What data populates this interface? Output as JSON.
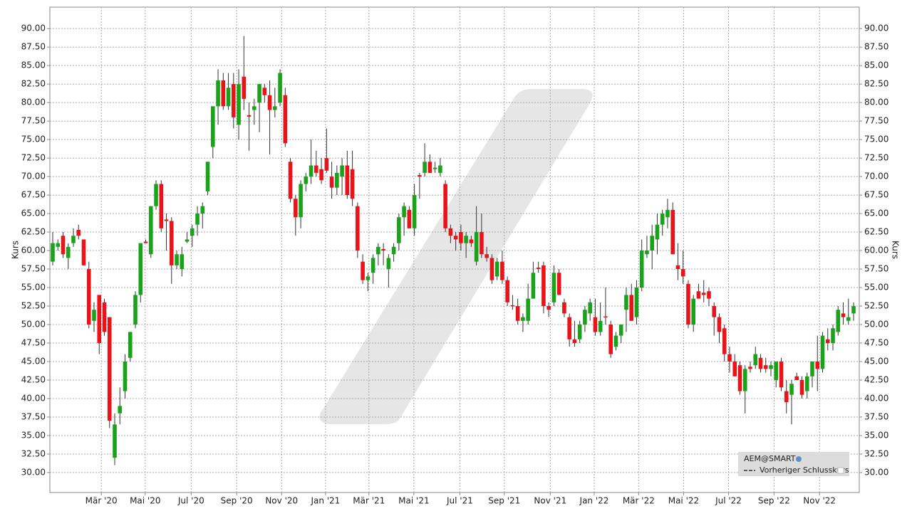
{
  "chart_data": {
    "type": "candlestick",
    "y_label": "Kurs",
    "y2_label": "Kurs",
    "legend": {
      "name": "AEM@SMART",
      "line_label": "Vorheriger Schlusskurs",
      "corner": "lower right"
    },
    "up_color": "#1aa31a",
    "down_color": "#e8141a",
    "grid": true,
    "xlim": [
      -0.55,
      156.1
    ],
    "ylim": [
      27.3,
      92.9
    ],
    "xticks": [
      {
        "value": 9.4,
        "label": "Mär '20"
      },
      {
        "value": 17.9,
        "label": "Mai '20"
      },
      {
        "value": 26.8,
        "label": "Jul '20"
      },
      {
        "value": 35.6,
        "label": "Sep '20"
      },
      {
        "value": 44.3,
        "label": "Nov '20"
      },
      {
        "value": 52.8,
        "label": "Jan '21"
      },
      {
        "value": 61.2,
        "label": "Mär '21"
      },
      {
        "value": 69.9,
        "label": "Mai '21"
      },
      {
        "value": 78.8,
        "label": "Jul '21"
      },
      {
        "value": 87.4,
        "label": "Sep '21"
      },
      {
        "value": 96.3,
        "label": "Nov '21"
      },
      {
        "value": 104.8,
        "label": "Jan '22"
      },
      {
        "value": 113.4,
        "label": "Mär '22"
      },
      {
        "value": 122.1,
        "label": "Mai '22"
      },
      {
        "value": 130.8,
        "label": "Jul '22"
      },
      {
        "value": 139.6,
        "label": "Sep '22"
      },
      {
        "value": 148.4,
        "label": "Nov '22"
      }
    ],
    "yticks": [
      {
        "value": 30,
        "label": "30.00"
      },
      {
        "value": 32.5,
        "label": "32.50"
      },
      {
        "value": 35,
        "label": "35.00"
      },
      {
        "value": 37.5,
        "label": "37.50"
      },
      {
        "value": 40,
        "label": "40.00"
      },
      {
        "value": 42.5,
        "label": "42.50"
      },
      {
        "value": 45,
        "label": "45.00"
      },
      {
        "value": 47.5,
        "label": "47.50"
      },
      {
        "value": 50,
        "label": "50.00"
      },
      {
        "value": 52.5,
        "label": "52.50"
      },
      {
        "value": 55,
        "label": "55.00"
      },
      {
        "value": 57.5,
        "label": "57.50"
      },
      {
        "value": 60,
        "label": "60.00"
      },
      {
        "value": 62.5,
        "label": "62.50"
      },
      {
        "value": 65,
        "label": "65.00"
      },
      {
        "value": 67.5,
        "label": "67.50"
      },
      {
        "value": 70,
        "label": "70.00"
      },
      {
        "value": 72.5,
        "label": "72.50"
      },
      {
        "value": 75,
        "label": "75.00"
      },
      {
        "value": 77.5,
        "label": "77.50"
      },
      {
        "value": 80,
        "label": "80.00"
      },
      {
        "value": 82.5,
        "label": "82.50"
      },
      {
        "value": 85,
        "label": "85.00"
      },
      {
        "value": 87.5,
        "label": "87.50"
      },
      {
        "value": 90,
        "label": "90.00"
      }
    ],
    "ohlc": [
      [
        58.5,
        62.5,
        58,
        61
      ],
      [
        60.5,
        61.5,
        60,
        61
      ],
      [
        62,
        62.5,
        59,
        59.5
      ],
      [
        59,
        61,
        57.5,
        60.5
      ],
      [
        61,
        63,
        60.5,
        62
      ],
      [
        62.8,
        63.5,
        61.5,
        62
      ],
      [
        61.5,
        61.5,
        58,
        58
      ],
      [
        57.5,
        58.5,
        49.5,
        50
      ],
      [
        50.5,
        53,
        49,
        52
      ],
      [
        54,
        54,
        46,
        47.5
      ],
      [
        53,
        53.5,
        48.5,
        49
      ],
      [
        51,
        51,
        36,
        37
      ],
      [
        32,
        38,
        31,
        36.5
      ],
      [
        38,
        41.5,
        36.5,
        39
      ],
      [
        41,
        46,
        40,
        45
      ],
      [
        45.5,
        49,
        45,
        49
      ],
      [
        50,
        54.5,
        49.5,
        54
      ],
      [
        54,
        61,
        53,
        61
      ],
      [
        61.2,
        61.5,
        61,
        61
      ],
      [
        59.5,
        66,
        59,
        66
      ],
      [
        66,
        69.5,
        65.5,
        69
      ],
      [
        69,
        69.5,
        62.5,
        63
      ],
      [
        64.2,
        65,
        60,
        64
      ],
      [
        64,
        64.5,
        55.5,
        58
      ],
      [
        58,
        60,
        57.5,
        59.5
      ],
      [
        57.5,
        60.5,
        56.5,
        59.5
      ],
      [
        61.2,
        62.5,
        61,
        61.5
      ],
      [
        62,
        63.5,
        60.5,
        63
      ],
      [
        63.5,
        66,
        62,
        65
      ],
      [
        65,
        66.5,
        63,
        66
      ],
      [
        68,
        72,
        67.5,
        72
      ],
      [
        74,
        79.5,
        72.5,
        79.5
      ],
      [
        79.5,
        84.5,
        77,
        83
      ],
      [
        83,
        84,
        79,
        79.5
      ],
      [
        79.5,
        84,
        79,
        82
      ],
      [
        82.5,
        84,
        76.5,
        78
      ],
      [
        77,
        84.5,
        75,
        82.5
      ],
      [
        83.5,
        89,
        79,
        80.5
      ],
      [
        78.3,
        80,
        73.5,
        78.1
      ],
      [
        79,
        80.5,
        77,
        79.5
      ],
      [
        80,
        82.5,
        76,
        82.5
      ],
      [
        82,
        82.5,
        80,
        81
      ],
      [
        81,
        83,
        73,
        79
      ],
      [
        79,
        82,
        78,
        79.5
      ],
      [
        80,
        84.5,
        79.5,
        84
      ],
      [
        81,
        82,
        74,
        74.5
      ],
      [
        72,
        72.5,
        66.5,
        67
      ],
      [
        67,
        67.5,
        62,
        64.5
      ],
      [
        64.5,
        69.5,
        63,
        69
      ],
      [
        69,
        70.5,
        68,
        70
      ],
      [
        70,
        75,
        69,
        71.5
      ],
      [
        71.5,
        73.5,
        70,
        70.5
      ],
      [
        71,
        72.5,
        69,
        69.5
      ],
      [
        72.5,
        76.5,
        70.5,
        70.8
      ],
      [
        70,
        72,
        67,
        68.5
      ],
      [
        68.5,
        71.5,
        67.5,
        70.5
      ],
      [
        70,
        72.5,
        67.5,
        71.5
      ],
      [
        71.5,
        73.5,
        67,
        67.5
      ],
      [
        71,
        73.5,
        66,
        67
      ],
      [
        66,
        66.5,
        59,
        60
      ],
      [
        58.5,
        59.5,
        55.5,
        56
      ],
      [
        56,
        57,
        54.5,
        56.5
      ],
      [
        57,
        59.5,
        55.5,
        59
      ],
      [
        59.5,
        61,
        58,
        60.5
      ],
      [
        60.2,
        61,
        58,
        60
      ],
      [
        57.5,
        59.5,
        55,
        59
      ],
      [
        59.5,
        61,
        58.5,
        60.5
      ],
      [
        61,
        65,
        60,
        64.5
      ],
      [
        64.5,
        66.5,
        62,
        66
      ],
      [
        65.5,
        66,
        63,
        63
      ],
      [
        63,
        69,
        62,
        67.5
      ],
      [
        70.2,
        70.5,
        67,
        70
      ],
      [
        70.5,
        74.5,
        70,
        72
      ],
      [
        72,
        73,
        70.5,
        70.5
      ],
      [
        71,
        72,
        70.5,
        71.2
      ],
      [
        70.5,
        72.5,
        70,
        71.5
      ],
      [
        69,
        69.5,
        62.5,
        63
      ],
      [
        63,
        63.5,
        61,
        62
      ],
      [
        62,
        62.5,
        60,
        61.5
      ],
      [
        62.5,
        63.5,
        60,
        61
      ],
      [
        61,
        62.5,
        59,
        62
      ],
      [
        61.5,
        62,
        60.5,
        61
      ],
      [
        58.5,
        66,
        58,
        62.5
      ],
      [
        62.5,
        65,
        59,
        59.5
      ],
      [
        59.5,
        60.5,
        58.5,
        59
      ],
      [
        59,
        59.5,
        55.5,
        56
      ],
      [
        56.5,
        59,
        56,
        58.5
      ],
      [
        58.5,
        60,
        55.5,
        56
      ],
      [
        56,
        56.5,
        52.5,
        53
      ],
      [
        52.6,
        54,
        52,
        52.5
      ],
      [
        52.5,
        53.5,
        50,
        50.5
      ],
      [
        50.5,
        51.5,
        49,
        51
      ],
      [
        50.5,
        55.5,
        50,
        53.5
      ],
      [
        53.5,
        58.5,
        53.5,
        57
      ],
      [
        57.7,
        58.5,
        57,
        57.5
      ],
      [
        58,
        58.5,
        51.5,
        52.5
      ],
      [
        52.5,
        53,
        51,
        52
      ],
      [
        53,
        58,
        52.5,
        57
      ],
      [
        57,
        57.5,
        54,
        54
      ],
      [
        53,
        53.5,
        51,
        51.5
      ],
      [
        51,
        51.5,
        47,
        48
      ],
      [
        48,
        50.5,
        47,
        47.5
      ],
      [
        48,
        50.5,
        47.5,
        50
      ],
      [
        50,
        52.5,
        49,
        52
      ],
      [
        51.5,
        53.5,
        50.5,
        53
      ],
      [
        51,
        53.5,
        48.5,
        49
      ],
      [
        49,
        53,
        48.5,
        50.5
      ],
      [
        51.1,
        55,
        50,
        51
      ],
      [
        50,
        50.5,
        45.5,
        46
      ],
      [
        47,
        49,
        46.5,
        48.5
      ],
      [
        48.5,
        50,
        47.5,
        50
      ],
      [
        52,
        55,
        49,
        54
      ],
      [
        54,
        55.5,
        50.5,
        50.5
      ],
      [
        51,
        56,
        50,
        55
      ],
      [
        55,
        61.5,
        54.5,
        60
      ],
      [
        59.5,
        62,
        59,
        60
      ],
      [
        60,
        63.5,
        57.5,
        62
      ],
      [
        61.5,
        65,
        59.5,
        63.5
      ],
      [
        63.5,
        65.5,
        62,
        65
      ],
      [
        64.5,
        67,
        63,
        65.5
      ],
      [
        65.5,
        66.5,
        59.5,
        59.5
      ],
      [
        58,
        61,
        56,
        57.5
      ],
      [
        57.5,
        60,
        55.5,
        56.5
      ],
      [
        55.5,
        56,
        49.5,
        50
      ],
      [
        50,
        54,
        49,
        53.5
      ],
      [
        54.5,
        55.5,
        53.5,
        53.5
      ],
      [
        54.3,
        56,
        53,
        54
      ],
      [
        54.5,
        55,
        52.5,
        53.5
      ],
      [
        52.5,
        53,
        48.5,
        51
      ],
      [
        51,
        51.5,
        47.5,
        49
      ],
      [
        49.5,
        50,
        45,
        46
      ],
      [
        46,
        47,
        43.5,
        45
      ],
      [
        45,
        46,
        43,
        43
      ],
      [
        44.5,
        45,
        40.5,
        41
      ],
      [
        41,
        44.5,
        38,
        44
      ],
      [
        44.3,
        45,
        43.5,
        44
      ],
      [
        44.5,
        47,
        44,
        46
      ],
      [
        45.5,
        46,
        43.5,
        44
      ],
      [
        44.5,
        45.5,
        43.5,
        44
      ],
      [
        44,
        45,
        43,
        44.5
      ],
      [
        42.5,
        45,
        41.5,
        45
      ],
      [
        45,
        45.5,
        41,
        41.5
      ],
      [
        41,
        42.5,
        38,
        39.5
      ],
      [
        40.5,
        42.5,
        36.5,
        42
      ],
      [
        43,
        43.5,
        42.5,
        42.5
      ],
      [
        42.5,
        43,
        40,
        40.5
      ],
      [
        41,
        43.5,
        40,
        43
      ],
      [
        43,
        45,
        41.5,
        45
      ],
      [
        45,
        48.5,
        41,
        44
      ],
      [
        44,
        49,
        43.5,
        48.5
      ],
      [
        48,
        49.5,
        46.5,
        47.5
      ],
      [
        47.5,
        50,
        46.5,
        49.5
      ],
      [
        49,
        52.5,
        48.5,
        52
      ],
      [
        51.5,
        53,
        50,
        51
      ],
      [
        50.5,
        53.5,
        50,
        51
      ],
      [
        51.5,
        53,
        50.5,
        52.5
      ]
    ]
  }
}
